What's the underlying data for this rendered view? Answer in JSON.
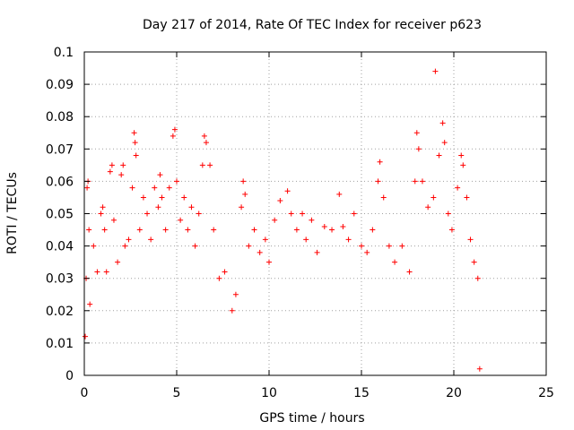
{
  "chart_data": {
    "type": "scatter",
    "title": "Day 217 of 2014, Rate Of TEC Index for receiver p623",
    "xlabel": "GPS time / hours",
    "ylabel": "ROTI / TECUs",
    "xlim": [
      0,
      25
    ],
    "ylim": [
      0,
      0.1
    ],
    "xticks": [
      "0",
      "5",
      "10",
      "15",
      "20",
      "25"
    ],
    "yticks": [
      "0",
      "0.01",
      "0.02",
      "0.03",
      "0.04",
      "0.05",
      "0.06",
      "0.07",
      "0.08",
      "0.09",
      "0.1"
    ],
    "grid": true,
    "marker": "+",
    "color": "#ff0000",
    "data_range_x": [
      0,
      21.5
    ],
    "series": [
      {
        "points": [
          [
            0.05,
            0.012
          ],
          [
            0.1,
            0.03
          ],
          [
            0.15,
            0.058
          ],
          [
            0.2,
            0.06
          ],
          [
            0.25,
            0.045
          ],
          [
            0.3,
            0.022
          ],
          [
            0.5,
            0.04
          ],
          [
            0.7,
            0.032
          ],
          [
            0.9,
            0.05
          ],
          [
            1.0,
            0.052
          ],
          [
            1.1,
            0.045
          ],
          [
            1.2,
            0.032
          ],
          [
            1.4,
            0.063
          ],
          [
            1.5,
            0.065
          ],
          [
            1.6,
            0.048
          ],
          [
            1.8,
            0.035
          ],
          [
            2.0,
            0.062
          ],
          [
            2.1,
            0.065
          ],
          [
            2.2,
            0.04
          ],
          [
            2.4,
            0.042
          ],
          [
            2.6,
            0.058
          ],
          [
            2.7,
            0.075
          ],
          [
            2.75,
            0.072
          ],
          [
            2.8,
            0.068
          ],
          [
            3.0,
            0.045
          ],
          [
            3.2,
            0.055
          ],
          [
            3.4,
            0.05
          ],
          [
            3.6,
            0.042
          ],
          [
            3.8,
            0.058
          ],
          [
            4.0,
            0.052
          ],
          [
            4.1,
            0.062
          ],
          [
            4.2,
            0.055
          ],
          [
            4.4,
            0.045
          ],
          [
            4.6,
            0.058
          ],
          [
            4.8,
            0.074
          ],
          [
            4.9,
            0.076
          ],
          [
            5.0,
            0.06
          ],
          [
            5.2,
            0.048
          ],
          [
            5.4,
            0.055
          ],
          [
            5.6,
            0.045
          ],
          [
            5.8,
            0.052
          ],
          [
            6.0,
            0.04
          ],
          [
            6.2,
            0.05
          ],
          [
            6.4,
            0.065
          ],
          [
            6.5,
            0.074
          ],
          [
            6.6,
            0.072
          ],
          [
            6.8,
            0.065
          ],
          [
            7.0,
            0.045
          ],
          [
            7.3,
            0.03
          ],
          [
            7.6,
            0.032
          ],
          [
            8.0,
            0.02
          ],
          [
            8.2,
            0.025
          ],
          [
            8.5,
            0.052
          ],
          [
            8.6,
            0.06
          ],
          [
            8.7,
            0.056
          ],
          [
            8.9,
            0.04
          ],
          [
            9.2,
            0.045
          ],
          [
            9.5,
            0.038
          ],
          [
            9.8,
            0.042
          ],
          [
            10.0,
            0.035
          ],
          [
            10.3,
            0.048
          ],
          [
            10.6,
            0.054
          ],
          [
            11.0,
            0.057
          ],
          [
            11.2,
            0.05
          ],
          [
            11.5,
            0.045
          ],
          [
            11.8,
            0.05
          ],
          [
            12.0,
            0.042
          ],
          [
            12.3,
            0.048
          ],
          [
            12.6,
            0.038
          ],
          [
            13.0,
            0.046
          ],
          [
            13.4,
            0.045
          ],
          [
            13.8,
            0.056
          ],
          [
            14.0,
            0.046
          ],
          [
            14.3,
            0.042
          ],
          [
            14.6,
            0.05
          ],
          [
            15.0,
            0.04
          ],
          [
            15.3,
            0.038
          ],
          [
            15.6,
            0.045
          ],
          [
            15.9,
            0.06
          ],
          [
            16.0,
            0.066
          ],
          [
            16.2,
            0.055
          ],
          [
            16.5,
            0.04
          ],
          [
            16.8,
            0.035
          ],
          [
            17.2,
            0.04
          ],
          [
            17.6,
            0.032
          ],
          [
            17.9,
            0.06
          ],
          [
            18.0,
            0.075
          ],
          [
            18.1,
            0.07
          ],
          [
            18.3,
            0.06
          ],
          [
            18.6,
            0.052
          ],
          [
            18.9,
            0.055
          ],
          [
            19.0,
            0.094
          ],
          [
            19.2,
            0.068
          ],
          [
            19.4,
            0.078
          ],
          [
            19.5,
            0.072
          ],
          [
            19.7,
            0.05
          ],
          [
            19.9,
            0.045
          ],
          [
            20.2,
            0.058
          ],
          [
            20.4,
            0.068
          ],
          [
            20.5,
            0.065
          ],
          [
            20.7,
            0.055
          ],
          [
            20.9,
            0.042
          ],
          [
            21.1,
            0.035
          ],
          [
            21.3,
            0.03
          ],
          [
            21.4,
            0.002
          ]
        ]
      }
    ]
  }
}
